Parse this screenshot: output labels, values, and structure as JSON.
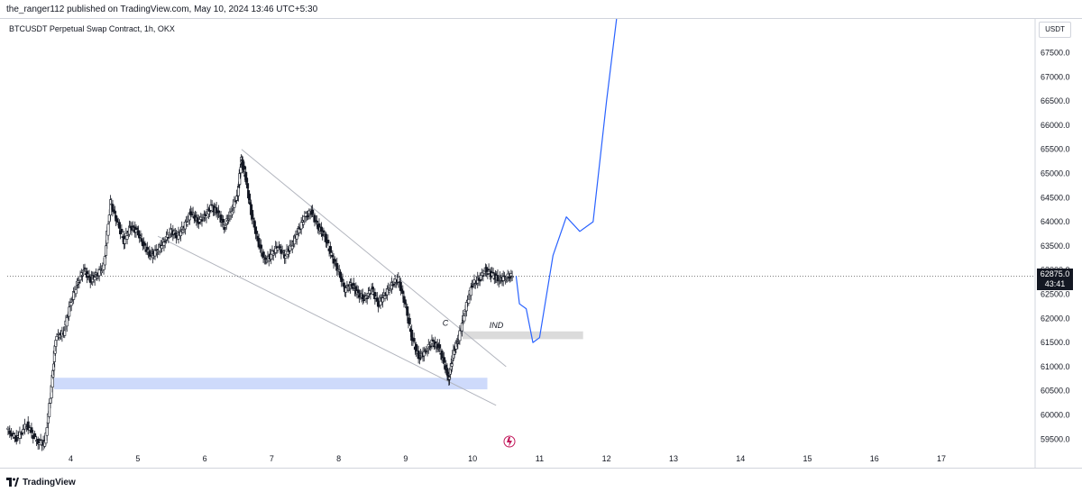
{
  "header": {
    "published": "the_ranger112 published on TradingView.com, May 10, 2024 13:46 UTC+5:30"
  },
  "pane": {
    "symbol_label": "BTCUSDT Perpetual Swap Contract, 1h, OKX"
  },
  "price_axis": {
    "currency": "USDT",
    "last_price": "62875.0",
    "countdown": "43:41"
  },
  "footer": {
    "brand": "TradingView"
  },
  "colors": {
    "bull": "#131722",
    "bear": "#131722",
    "projection": "#2962ff",
    "demand_zone": "#c9d6fb",
    "ind_zone": "#d7d7d7",
    "trendline": "#b2b5be"
  },
  "chart_data": {
    "type": "line",
    "symbol": "BTCUSDT Perpetual Swap Contract",
    "timeframe": "1h",
    "exchange": "OKX",
    "x_ticks": [
      "4",
      "5",
      "6",
      "7",
      "8",
      "9",
      "10",
      "11",
      "12",
      "13",
      "14",
      "15",
      "16",
      "17"
    ],
    "y_ticks": [
      "59500.0",
      "60000.0",
      "60500.0",
      "61000.0",
      "61500.0",
      "62000.0",
      "62500.0",
      "63000.0",
      "63500.0",
      "64000.0",
      "64500.0",
      "65000.0",
      "65500.0",
      "66000.0",
      "66500.0",
      "67000.0",
      "67500.0"
    ],
    "ylim": [
      59300,
      68200
    ],
    "xlim": [
      3.05,
      18.4
    ],
    "last_price": 62875.0,
    "series": [
      {
        "values": [
          [
            3.05,
            59700
          ],
          [
            3.2,
            59500
          ],
          [
            3.35,
            59800
          ],
          [
            3.5,
            59450
          ],
          [
            3.62,
            59400
          ],
          [
            3.72,
            60600
          ],
          [
            3.78,
            61600
          ],
          [
            3.9,
            61700
          ],
          [
            4.0,
            62300
          ],
          [
            4.1,
            62700
          ],
          [
            4.2,
            63000
          ],
          [
            4.3,
            62800
          ],
          [
            4.4,
            62900
          ],
          [
            4.5,
            63100
          ],
          [
            4.6,
            64400
          ],
          [
            4.7,
            64000
          ],
          [
            4.8,
            63600
          ],
          [
            4.9,
            63900
          ],
          [
            5.0,
            63800
          ],
          [
            5.1,
            63500
          ],
          [
            5.2,
            63300
          ],
          [
            5.3,
            63400
          ],
          [
            5.4,
            63600
          ],
          [
            5.5,
            63800
          ],
          [
            5.6,
            63700
          ],
          [
            5.7,
            63900
          ],
          [
            5.8,
            64200
          ],
          [
            5.9,
            64000
          ],
          [
            6.0,
            64100
          ],
          [
            6.1,
            64300
          ],
          [
            6.2,
            64200
          ],
          [
            6.3,
            63900
          ],
          [
            6.4,
            64200
          ],
          [
            6.5,
            64600
          ],
          [
            6.55,
            65300
          ],
          [
            6.62,
            64900
          ],
          [
            6.7,
            64200
          ],
          [
            6.8,
            63600
          ],
          [
            6.9,
            63200
          ],
          [
            7.0,
            63300
          ],
          [
            7.1,
            63500
          ],
          [
            7.2,
            63300
          ],
          [
            7.3,
            63500
          ],
          [
            7.4,
            63800
          ],
          [
            7.5,
            64100
          ],
          [
            7.6,
            64200
          ],
          [
            7.7,
            63900
          ],
          [
            7.8,
            63700
          ],
          [
            7.9,
            63300
          ],
          [
            8.0,
            63000
          ],
          [
            8.1,
            62600
          ],
          [
            8.2,
            62700
          ],
          [
            8.3,
            62500
          ],
          [
            8.4,
            62400
          ],
          [
            8.5,
            62600
          ],
          [
            8.6,
            62300
          ],
          [
            8.7,
            62500
          ],
          [
            8.8,
            62700
          ],
          [
            8.9,
            62800
          ],
          [
            9.0,
            62300
          ],
          [
            9.1,
            61600
          ],
          [
            9.2,
            61200
          ],
          [
            9.3,
            61300
          ],
          [
            9.4,
            61500
          ],
          [
            9.5,
            61400
          ],
          [
            9.6,
            61000
          ],
          [
            9.65,
            60750
          ],
          [
            9.72,
            61300
          ],
          [
            9.8,
            61600
          ],
          [
            9.9,
            62200
          ],
          [
            10.0,
            62700
          ],
          [
            10.1,
            62800
          ],
          [
            10.2,
            63000
          ],
          [
            10.3,
            62900
          ],
          [
            10.4,
            62800
          ],
          [
            10.5,
            62850
          ],
          [
            10.6,
            62875
          ]
        ]
      },
      {
        "values": [
          [
            10.65,
            62875
          ],
          [
            10.7,
            62300
          ],
          [
            10.8,
            62200
          ],
          [
            10.9,
            61500
          ],
          [
            11.0,
            61600
          ],
          [
            11.2,
            63300
          ],
          [
            11.4,
            64100
          ],
          [
            11.6,
            63800
          ],
          [
            11.8,
            64000
          ],
          [
            12.0,
            66500
          ],
          [
            12.15,
            68200
          ]
        ]
      }
    ],
    "annotations": [
      {
        "type": "text",
        "label": "C",
        "x": 9.55,
        "y": 61850
      },
      {
        "type": "text",
        "label": "IND",
        "x": 10.25,
        "y": 61800
      },
      {
        "type": "zone",
        "x": [
          3.75,
          10.22
        ],
        "y": [
          60530,
          60770
        ]
      },
      {
        "type": "zone",
        "x": [
          9.85,
          11.65
        ],
        "y": [
          61570,
          61730
        ]
      }
    ],
    "grid": false
  }
}
